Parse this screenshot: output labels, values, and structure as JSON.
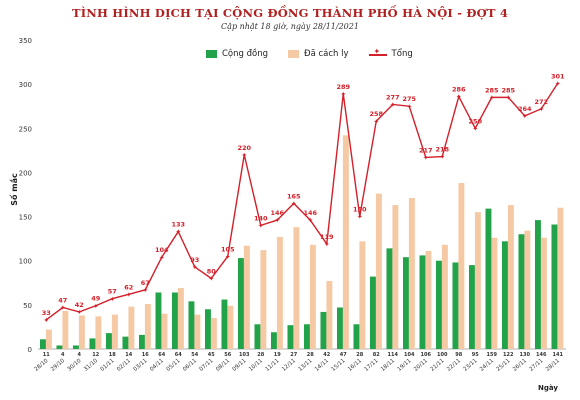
{
  "title": "TÌNH HÌNH DỊCH TẠI CỘNG ĐỒNG THÀNH PHỐ HÀ NỘI - ĐỢT 4",
  "subtitle": "Cập nhật 18 giờ, ngày 28/11/2021",
  "colors": {
    "community": "#22a34a",
    "isolation": "#f5c9a4",
    "total": "#d3202a"
  },
  "chart_data": {
    "type": "bar",
    "title": "TÌNH HÌNH DỊCH TẠI CỘNG ĐỒNG THÀNH PHỐ HÀ NỘI - ĐỢT 4",
    "ylabel": "Số mắc",
    "xlabel": "Ngày",
    "ylim": [
      0,
      350
    ],
    "yticks": [
      0,
      50,
      100,
      150,
      200,
      250,
      300,
      350
    ],
    "legend_position": "top",
    "categories": [
      "28/10",
      "29/10",
      "30/10",
      "31/10",
      "01/11",
      "02/11",
      "03/11",
      "04/11",
      "05/11",
      "06/11",
      "07/11",
      "08/11",
      "09/11",
      "10/11",
      "11/11",
      "12/11",
      "13/11",
      "14/11",
      "15/11",
      "16/11",
      "17/11",
      "18/11",
      "19/11",
      "20/11",
      "21/11",
      "22/11",
      "23/11",
      "24/11",
      "25/11",
      "26/11",
      "27/11",
      "28/11"
    ],
    "series": [
      {
        "name": "Cộng đồng",
        "kind": "bar",
        "values": [
          11,
          4,
          4,
          12,
          18,
          14,
          16,
          64,
          64,
          54,
          45,
          56,
          103,
          28,
          19,
          27,
          28,
          42,
          47,
          28,
          82,
          114,
          104,
          106,
          100,
          98,
          95,
          159,
          122,
          130,
          146,
          141
        ]
      },
      {
        "name": "Đã cách ly",
        "kind": "bar",
        "values": [
          22,
          43,
          38,
          37,
          39,
          48,
          51,
          40,
          69,
          39,
          35,
          49,
          117,
          112,
          127,
          138,
          118,
          77,
          242,
          122,
          176,
          163,
          171,
          111,
          118,
          188,
          155,
          126,
          163,
          134,
          126,
          160
        ]
      },
      {
        "name": "Tổng",
        "kind": "line",
        "values": [
          33,
          47,
          42,
          49,
          57,
          62,
          67,
          104,
          133,
          93,
          80,
          105,
          220,
          140,
          146,
          165,
          146,
          119,
          289,
          150,
          258,
          277,
          275,
          217,
          218,
          286,
          250,
          285,
          285,
          264,
          272,
          301
        ]
      }
    ]
  }
}
